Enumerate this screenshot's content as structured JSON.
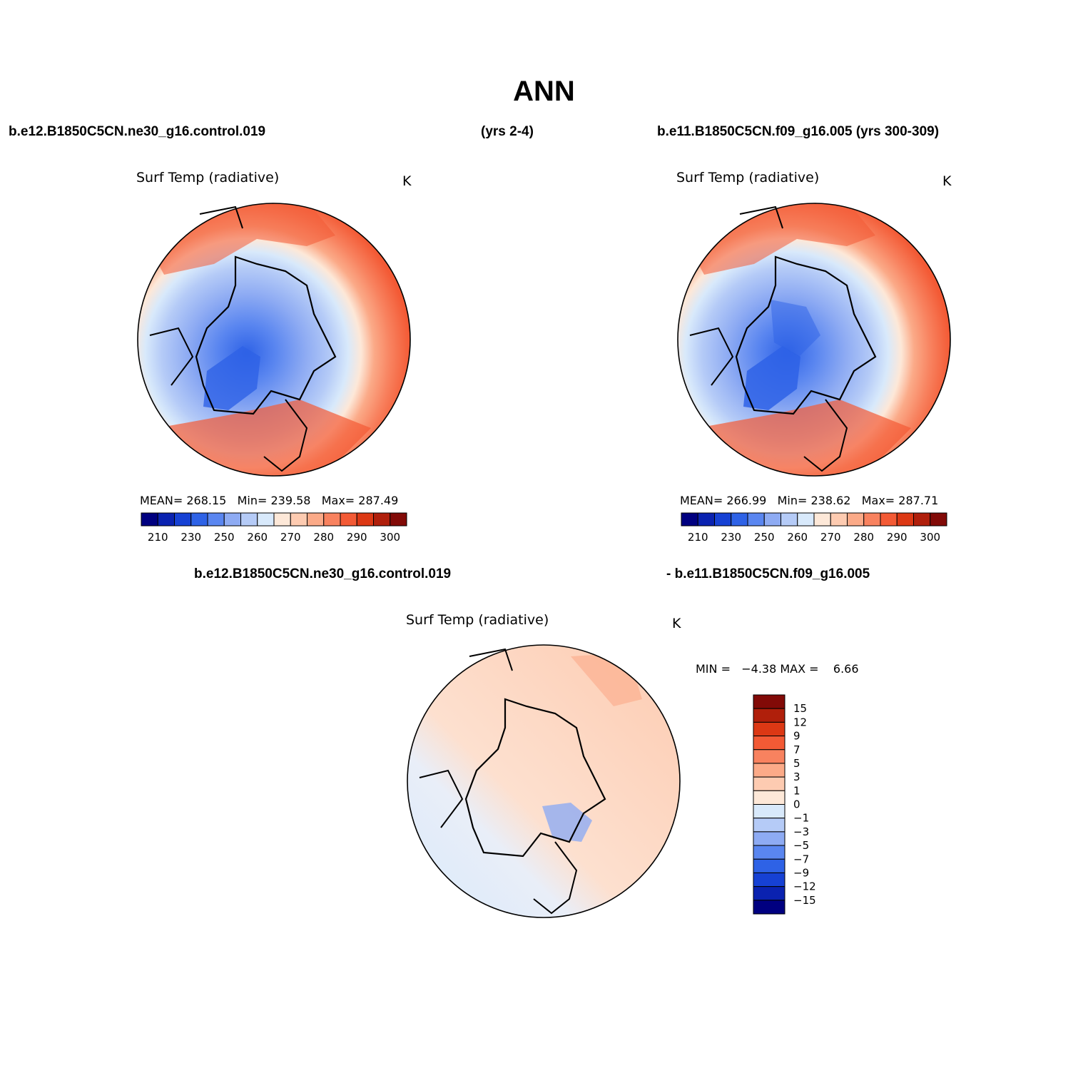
{
  "title": "ANN",
  "header": {
    "case1": "b.e12.B1850C5CN.ne30_g16.control.019",
    "years1": "(yrs 2-4)",
    "case2": "b.e11.B1850C5CN.f09_g16.005 (yrs 300-309)",
    "diff_case1": "b.e12.B1850C5CN.ne30_g16.control.019",
    "diff_case2": "- b.e11.B1850C5CN.f09_g16.005"
  },
  "colors": {
    "abs_scale": [
      "#000080",
      "#0a22b0",
      "#1641d4",
      "#2e62e6",
      "#5a86f0",
      "#8eabf3",
      "#b5cbf7",
      "#d8e9fb",
      "#fde8d8",
      "#fdcbb1",
      "#fbaa88",
      "#f8825f",
      "#f35a35",
      "#dc3814",
      "#b01f0b",
      "#820a07"
    ],
    "diff_scale": [
      "#820a07",
      "#b01f0b",
      "#dc3814",
      "#f35a35",
      "#f8825f",
      "#fbaa88",
      "#fdcbb1",
      "#fde8d8",
      "#d8e9fb",
      "#b5cbf7",
      "#8eabf3",
      "#5a86f0",
      "#2e62e6",
      "#1641d4",
      "#0a22b0",
      "#000080"
    ]
  },
  "chart_data": [
    {
      "type": "heatmap",
      "projection": "north-polar-stereographic",
      "title": "Surf Temp (radiative)",
      "units": "K",
      "mean_label": "MEAN=",
      "mean": "268.15",
      "min_label": "Min=",
      "min": "239.58",
      "max_label": "Max=",
      "max": "287.49",
      "colorbar_ticks": [
        "210",
        "230",
        "250",
        "260",
        "270",
        "280",
        "290",
        "300"
      ]
    },
    {
      "type": "heatmap",
      "projection": "north-polar-stereographic",
      "title": "Surf Temp (radiative)",
      "units": "K",
      "mean_label": "MEAN=",
      "mean": "266.99",
      "min_label": "Min=",
      "min": "238.62",
      "max_label": "Max=",
      "max": "287.71",
      "colorbar_ticks": [
        "210",
        "230",
        "250",
        "260",
        "270",
        "280",
        "290",
        "300"
      ]
    },
    {
      "type": "heatmap",
      "projection": "north-polar-stereographic",
      "title": "Surf Temp (radiative)",
      "units": "K",
      "minmax_label": "MIN =   −4.38 MAX =    6.66",
      "colorbar_ticks": [
        "15",
        "12",
        "9",
        "7",
        "5",
        "3",
        "1",
        "0",
        "−1",
        "−3",
        "−5",
        "−7",
        "−9",
        "−12",
        "−15"
      ]
    }
  ]
}
